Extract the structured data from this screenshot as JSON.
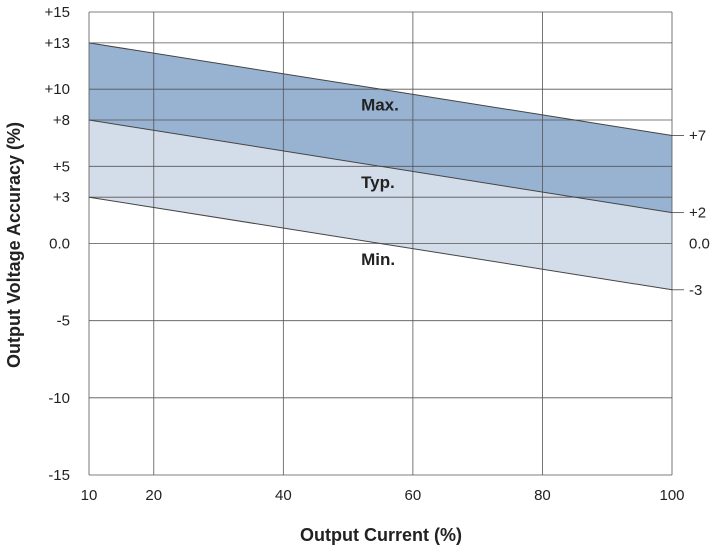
{
  "chart_data": {
    "type": "line",
    "xlabel": "Output Current (%)",
    "ylabel": "Output Voltage Accuracy (%)",
    "xlim": [
      10,
      100
    ],
    "ylim": [
      -15,
      15
    ],
    "grid": true,
    "x_ticks": [
      {
        "value": 10,
        "label": "10"
      },
      {
        "value": 20,
        "label": "20"
      },
      {
        "value": 40,
        "label": "40"
      },
      {
        "value": 60,
        "label": "60"
      },
      {
        "value": 80,
        "label": "80"
      },
      {
        "value": 100,
        "label": "100"
      }
    ],
    "y_ticks": [
      {
        "value": 15,
        "label": "+15"
      },
      {
        "value": 13,
        "label": "+13"
      },
      {
        "value": 10,
        "label": "+10"
      },
      {
        "value": 8,
        "label": "+8"
      },
      {
        "value": 5,
        "label": "+5"
      },
      {
        "value": 3,
        "label": "+3"
      },
      {
        "value": 0,
        "label": "0.0"
      },
      {
        "value": -5,
        "label": "-5"
      },
      {
        "value": -10,
        "label": "-10"
      },
      {
        "value": -15,
        "label": "-15"
      }
    ],
    "series": [
      {
        "name": "Max.",
        "x": [
          10,
          100
        ],
        "y": [
          13,
          7
        ],
        "end_label": "+7",
        "label_pos": [
          52,
          9
        ]
      },
      {
        "name": "Typ.",
        "x": [
          10,
          100
        ],
        "y": [
          8,
          2
        ],
        "end_label": "+2",
        "label_pos": [
          52,
          4
        ]
      },
      {
        "name": "Min.",
        "x": [
          10,
          100
        ],
        "y": [
          3,
          -3
        ],
        "end_label": "-3",
        "label_pos": [
          52,
          -1
        ]
      }
    ],
    "right_labels": [
      {
        "value": 0,
        "label": "0.0"
      }
    ],
    "colors": {
      "upper_band": "#98b2d2",
      "lower_band": "#d3dde9",
      "grid": "#555555",
      "line": "#444444"
    }
  }
}
